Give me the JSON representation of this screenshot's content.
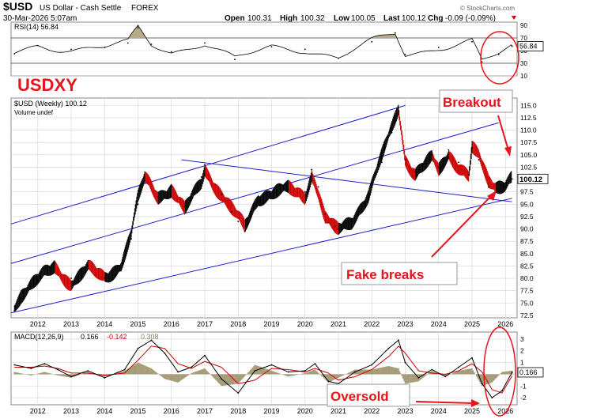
{
  "header": {
    "symbol": "$USD",
    "description": "US Dollar - Cash Settle",
    "exchange": "FOREX",
    "date": "30-Mar-2026 5:07am",
    "open_label": "Open",
    "open_value": "100.31",
    "high_label": "High",
    "high_value": "100.32",
    "low_label": "Low",
    "low_value": "100.05",
    "last_label": "Last",
    "last_value": "100.12",
    "chg_label": "Chg",
    "chg_value": "-0.09 (-0.09%)",
    "chg_arrow_icon": "triangle-down-icon",
    "watermark": "© StockCharts.com"
  },
  "annotations": {
    "usdxy": "USDXY",
    "breakout": "Breakout",
    "fake_breaks": "Fake breaks",
    "oversold": "Oversold"
  },
  "colors": {
    "price_up": "#000000",
    "price_down": "#cc0000",
    "trendline": "#1f1fcc",
    "rsi_fill": "#b8ab8b",
    "macd_line": "#000000",
    "signal_line": "#cc0000",
    "histogram": "#a79c78",
    "annotation_red": "#e8141c",
    "grid": "#d4d4d4"
  },
  "chart_data": [
    {
      "type": "line",
      "panel": "RSI",
      "legend": "RSI(14) 56.84",
      "current_label": "56.84",
      "ylim": [
        10,
        95
      ],
      "y_ticks": [
        10,
        30,
        50,
        70,
        90
      ],
      "reference_lines": [
        30,
        70
      ],
      "x": [
        2011.3,
        2012,
        2013,
        2014,
        2014.7,
        2015.0,
        2015.4,
        2016,
        2017,
        2017.9,
        2019,
        2020,
        2021,
        2022,
        2022.7,
        2023,
        2024,
        2025.0,
        2025.3,
        2025.8,
        2026.2
      ],
      "values": [
        45,
        58,
        52,
        55,
        62,
        86,
        60,
        48,
        62,
        36,
        56,
        52,
        38,
        64,
        78,
        44,
        55,
        64,
        32,
        44,
        56.84
      ]
    },
    {
      "type": "line",
      "panel": "Price",
      "series_name": "$USD (Weekly) 100.12",
      "volume_label": "Volume undef",
      "current_label": "100.12",
      "ylim": [
        72,
        116.5
      ],
      "y_ticks": [
        72.5,
        75.0,
        77.5,
        80.0,
        82.5,
        85.0,
        87.5,
        90.0,
        92.5,
        95.0,
        97.5,
        100.0,
        102.5,
        105.0,
        107.5,
        110.0,
        112.5,
        115.0
      ],
      "x_tick_labels": [
        "2012",
        "2013",
        "2014",
        "2015",
        "2016",
        "2017",
        "2018",
        "2019",
        "2020",
        "2021",
        "2022",
        "2023",
        "2024",
        "2025",
        "2026"
      ],
      "x": [
        2011.3,
        2011.5,
        2012.0,
        2012.5,
        2013.0,
        2013.5,
        2014.0,
        2014.5,
        2014.8,
        2015.0,
        2015.2,
        2015.6,
        2016.0,
        2016.4,
        2016.9,
        2017.0,
        2017.5,
        2017.8,
        2018.0,
        2018.2,
        2018.6,
        2019.0,
        2019.5,
        2020.0,
        2020.2,
        2020.4,
        2020.6,
        2020.9,
        2021.0,
        2021.4,
        2021.9,
        2022.3,
        2022.6,
        2022.8,
        2023.0,
        2023.3,
        2023.8,
        2024.0,
        2024.3,
        2024.6,
        2024.9,
        2025.0,
        2025.2,
        2025.5,
        2025.7,
        2026.0,
        2026.2
      ],
      "values": [
        73.5,
        76.0,
        79.5,
        83.0,
        80.0,
        82.5,
        80.0,
        82.0,
        88.0,
        95.0,
        99.5,
        96.5,
        98.5,
        94.5,
        100.5,
        103.0,
        97.0,
        93.5,
        91.5,
        89.5,
        95.5,
        96.5,
        98.0,
        97.5,
        102.0,
        98.5,
        93.0,
        90.5,
        90.0,
        91.5,
        96.0,
        103.5,
        109.5,
        114.0,
        104.0,
        101.5,
        105.0,
        102.5,
        106.0,
        103.5,
        101.0,
        106.5,
        104.0,
        98.5,
        97.5,
        98.5,
        100.12
      ],
      "trendlines": [
        {
          "name": "lower-channel",
          "from": [
            2011.2,
            73.0
          ],
          "to": [
            2026.2,
            96.2
          ]
        },
        {
          "name": "middle-channel",
          "from": [
            2011.2,
            83.0
          ],
          "to": [
            2025.8,
            111.5
          ]
        },
        {
          "name": "upper-channel",
          "from": [
            2011.2,
            91.0
          ],
          "to": [
            2023.0,
            115.0
          ]
        },
        {
          "name": "descending-line",
          "from": [
            2016.3,
            104.0
          ],
          "to": [
            2026.2,
            95.5
          ]
        }
      ]
    },
    {
      "type": "line",
      "panel": "MACD",
      "legend_prefix": "MACD(12,26,9)",
      "macd_value": "0.166",
      "signal_value": "-0.142",
      "hist_value": "0.308",
      "current_label": "0.166",
      "ylim": [
        -2.6,
        3.6
      ],
      "y_ticks": [
        -2,
        -1,
        0,
        1,
        2,
        3
      ],
      "x": [
        2011.3,
        2011.8,
        2012.2,
        2012.6,
        2013.0,
        2013.5,
        2014.0,
        2014.6,
        2015.0,
        2015.4,
        2015.8,
        2016.2,
        2016.6,
        2017.0,
        2017.5,
        2018.0,
        2018.5,
        2019.0,
        2019.5,
        2020.0,
        2020.3,
        2020.7,
        2021.0,
        2021.5,
        2022.0,
        2022.5,
        2022.8,
        2023.0,
        2023.4,
        2023.8,
        2024.2,
        2024.6,
        2025.0,
        2025.3,
        2025.6,
        2025.9,
        2026.2
      ],
      "values": [
        0.8,
        0.5,
        0.9,
        0.4,
        -0.2,
        0.3,
        -0.3,
        0.4,
        2.2,
        2.9,
        1.8,
        0.2,
        0.6,
        1.6,
        -0.4,
        -1.6,
        0.3,
        0.8,
        0.2,
        0.3,
        0.9,
        -0.6,
        -0.8,
        0.2,
        0.8,
        2.2,
        2.9,
        1.0,
        -0.3,
        0.4,
        -0.2,
        0.6,
        1.4,
        -0.8,
        -2.0,
        -1.4,
        0.166
      ],
      "signal": [
        0.6,
        0.6,
        0.7,
        0.5,
        0.1,
        0.1,
        -0.1,
        0.1,
        1.2,
        2.4,
        2.2,
        0.9,
        0.5,
        1.1,
        0.6,
        -0.8,
        -0.5,
        0.5,
        0.4,
        0.2,
        0.5,
        0.1,
        -0.5,
        -0.2,
        0.4,
        1.5,
        2.4,
        1.8,
        0.3,
        0.1,
        0.0,
        0.3,
        0.9,
        0.2,
        -1.3,
        -1.6,
        -0.142
      ]
    }
  ]
}
